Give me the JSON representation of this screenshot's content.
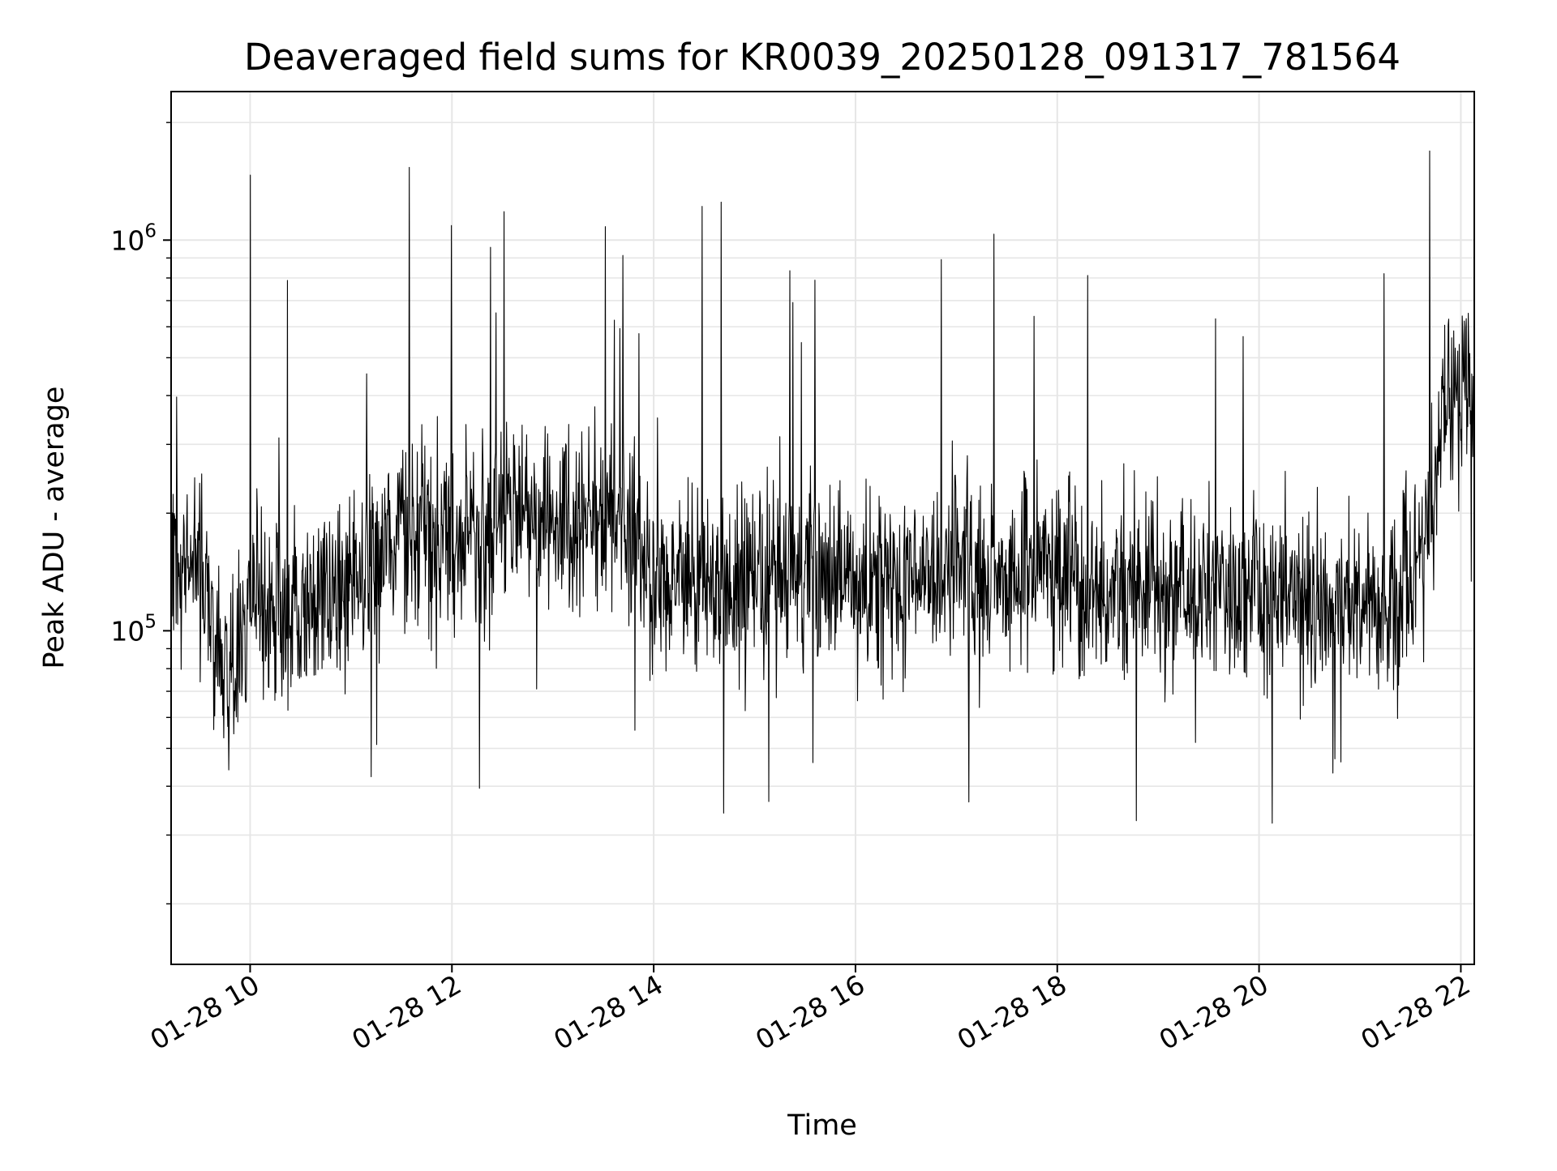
{
  "chart_data": {
    "type": "line",
    "title": "Deaveraged field sums for KR0039_20250128_091317_781564",
    "xlabel": "Time",
    "ylabel": "Peak ADU - average",
    "x_range": [
      "01-28 09:13",
      "01-28 22:08"
    ],
    "ylim": [
      14000,
      2400000
    ],
    "y_scale": "log",
    "grid": true,
    "x_ticks": [
      "01-28 10",
      "01-28 12",
      "01-28 14",
      "01-28 16",
      "01-28 18",
      "01-28 20",
      "01-28 22"
    ],
    "y_ticks": [
      {
        "base": "10",
        "exp": "6",
        "value": 1000000
      },
      {
        "base": "10",
        "exp": "5",
        "value": 100000
      }
    ],
    "line_color": "#000000",
    "grid_color": "#e6e6e6",
    "series": [
      {
        "x": [
          "01-28 09:13",
          "01-28 09:30",
          "01-28 09:45",
          "01-28 10:00",
          "01-28 10:30",
          "01-28 11:00",
          "01-28 11:30",
          "01-28 12:00",
          "01-28 12:30",
          "01-28 13:00",
          "01-28 13:30",
          "01-28 14:00",
          "01-28 14:30",
          "01-28 15:00",
          "01-28 15:30",
          "01-28 16:00",
          "01-28 16:30",
          "01-28 17:00",
          "01-28 17:30",
          "01-28 18:00",
          "01-28 18:30",
          "01-28 19:00",
          "01-28 19:30",
          "01-28 20:00",
          "01-28 20:30",
          "01-28 21:00",
          "01-28 21:30",
          "01-28 21:50",
          "01-28 22:08"
        ],
        "y": [
          170000,
          140000,
          75000,
          120000,
          110000,
          130000,
          180000,
          170000,
          190000,
          200000,
          200000,
          140000,
          130000,
          140000,
          140000,
          140000,
          130000,
          145000,
          140000,
          150000,
          120000,
          130000,
          125000,
          125000,
          120000,
          120000,
          115000,
          350000,
          420000
        ]
      }
    ]
  }
}
